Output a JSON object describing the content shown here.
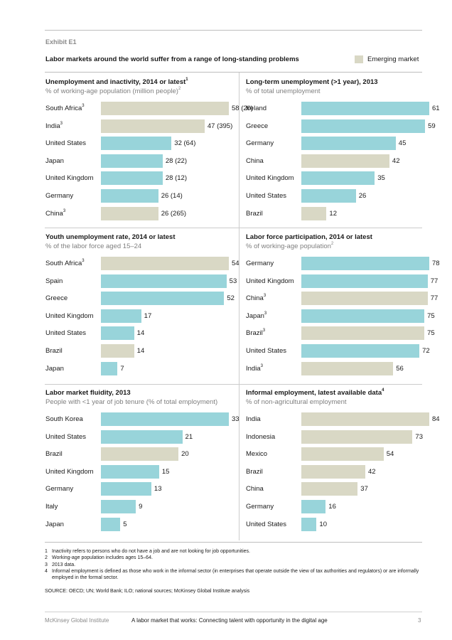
{
  "header": {
    "exhibit": "Exhibit E1",
    "title": "Labor markets around the world suffer from a range of long-standing problems",
    "legend_label": "Emerging market"
  },
  "colors": {
    "developed": "#98d4da",
    "emerging": "#d9d8c5"
  },
  "chart_data": [
    {
      "type": "bar",
      "title": "Unemployment and inactivity, 2014 or latest",
      "title_sup": "1",
      "subtitle": "% of working-age population (million people)",
      "subtitle_sup": "2",
      "categories": [
        "South Africa",
        "India",
        "United States",
        "Japan",
        "United Kingdom",
        "Germany",
        "China"
      ],
      "category_sups": [
        "3",
        "3",
        "",
        "",
        "",
        "",
        "3"
      ],
      "values": [
        58,
        47,
        32,
        28,
        28,
        26,
        26
      ],
      "labels": [
        "58 (20)",
        "47 (395)",
        "32 (64)",
        "28 (22)",
        "28 (12)",
        "26 (14)",
        "26 (265)"
      ],
      "emerging": [
        true,
        true,
        false,
        false,
        false,
        false,
        true
      ],
      "xlim": [
        0,
        58
      ]
    },
    {
      "type": "bar",
      "title": "Long-term unemployment (>1 year), 2013",
      "title_sup": "",
      "subtitle": "% of total unemployment",
      "subtitle_sup": "",
      "categories": [
        "Ireland",
        "Greece",
        "Germany",
        "China",
        "United Kingdom",
        "United States",
        "Brazil"
      ],
      "category_sups": [
        "",
        "",
        "",
        "",
        "",
        "",
        ""
      ],
      "values": [
        61,
        59,
        45,
        42,
        35,
        26,
        12
      ],
      "labels": [
        "61",
        "59",
        "45",
        "42",
        "35",
        "26",
        "12"
      ],
      "emerging": [
        false,
        false,
        false,
        true,
        false,
        false,
        true
      ],
      "xlim": [
        0,
        61
      ]
    },
    {
      "type": "bar",
      "title": "Youth unemployment rate, 2014 or latest",
      "title_sup": "",
      "subtitle": "% of the labor force aged 15–24",
      "subtitle_sup": "",
      "categories": [
        "South Africa",
        "Spain",
        "Greece",
        "United Kingdom",
        "United States",
        "Brazil",
        "Japan"
      ],
      "category_sups": [
        "3",
        "",
        "",
        "",
        "",
        "",
        ""
      ],
      "values": [
        54,
        53,
        52,
        17,
        14,
        14,
        7
      ],
      "labels": [
        "54",
        "53",
        "52",
        "17",
        "14",
        "14",
        "7"
      ],
      "emerging": [
        true,
        false,
        false,
        false,
        false,
        true,
        false
      ],
      "xlim": [
        0,
        54
      ]
    },
    {
      "type": "bar",
      "title": "Labor force participation, 2014 or latest",
      "title_sup": "",
      "subtitle": "% of working-age population",
      "subtitle_sup": "2",
      "categories": [
        "Germany",
        "United Kingdom",
        "China",
        "Japan",
        "Brazil",
        "United States",
        "India"
      ],
      "category_sups": [
        "",
        "",
        "3",
        "3",
        "3",
        "",
        "3"
      ],
      "values": [
        78,
        77,
        77,
        75,
        75,
        72,
        56
      ],
      "labels": [
        "78",
        "77",
        "77",
        "75",
        "75",
        "72",
        "56"
      ],
      "emerging": [
        false,
        false,
        true,
        false,
        true,
        false,
        true
      ],
      "xlim": [
        0,
        78
      ]
    },
    {
      "type": "bar",
      "title": "Labor market fluidity, 2013",
      "title_sup": "",
      "subtitle": "People with <1 year of job tenure (% of total employment)",
      "subtitle_sup": "",
      "categories": [
        "South Korea",
        "United States",
        "Brazil",
        "United Kingdom",
        "Germany",
        "Italy",
        "Japan"
      ],
      "category_sups": [
        "",
        "",
        "",
        "",
        "",
        "",
        ""
      ],
      "values": [
        33,
        21,
        20,
        15,
        13,
        9,
        5
      ],
      "labels": [
        "33",
        "21",
        "20",
        "15",
        "13",
        "9",
        "5"
      ],
      "emerging": [
        false,
        false,
        true,
        false,
        false,
        false,
        false
      ],
      "xlim": [
        0,
        33
      ]
    },
    {
      "type": "bar",
      "title": "Informal employment, latest available data",
      "title_sup": "4",
      "subtitle": "% of non-agricultural employment",
      "subtitle_sup": "",
      "categories": [
        "India",
        "Indonesia",
        "Mexico",
        "Brazil",
        "China",
        "Germany",
        "United States"
      ],
      "category_sups": [
        "",
        "",
        "",
        "",
        "",
        "",
        ""
      ],
      "values": [
        84,
        73,
        54,
        42,
        37,
        16,
        10
      ],
      "labels": [
        "84",
        "73",
        "54",
        "42",
        "37",
        "16",
        "10"
      ],
      "emerging": [
        true,
        true,
        true,
        true,
        true,
        false,
        false
      ],
      "xlim": [
        0,
        84
      ]
    }
  ],
  "notes": [
    {
      "num": "1",
      "text": "Inactivity refers to persons who do not have a job and are not looking for job opportunities."
    },
    {
      "num": "2",
      "text": "Working-age population includes ages 15–64."
    },
    {
      "num": "3",
      "text": "2013 data."
    },
    {
      "num": "4",
      "text": "Informal employment is defined as those who work in the informal sector (in enterprises that operate outside the view of tax authorities and regulators) or are informally employed in the formal sector."
    }
  ],
  "source": "SOURCE:  OECD; UN; World Bank; ILO; national sources; McKinsey Global Institute analysis",
  "footer": {
    "publisher": "McKinsey Global Institute",
    "report_title": "A labor market that works: Connecting talent with opportunity in the digital age",
    "page_number": "3"
  }
}
